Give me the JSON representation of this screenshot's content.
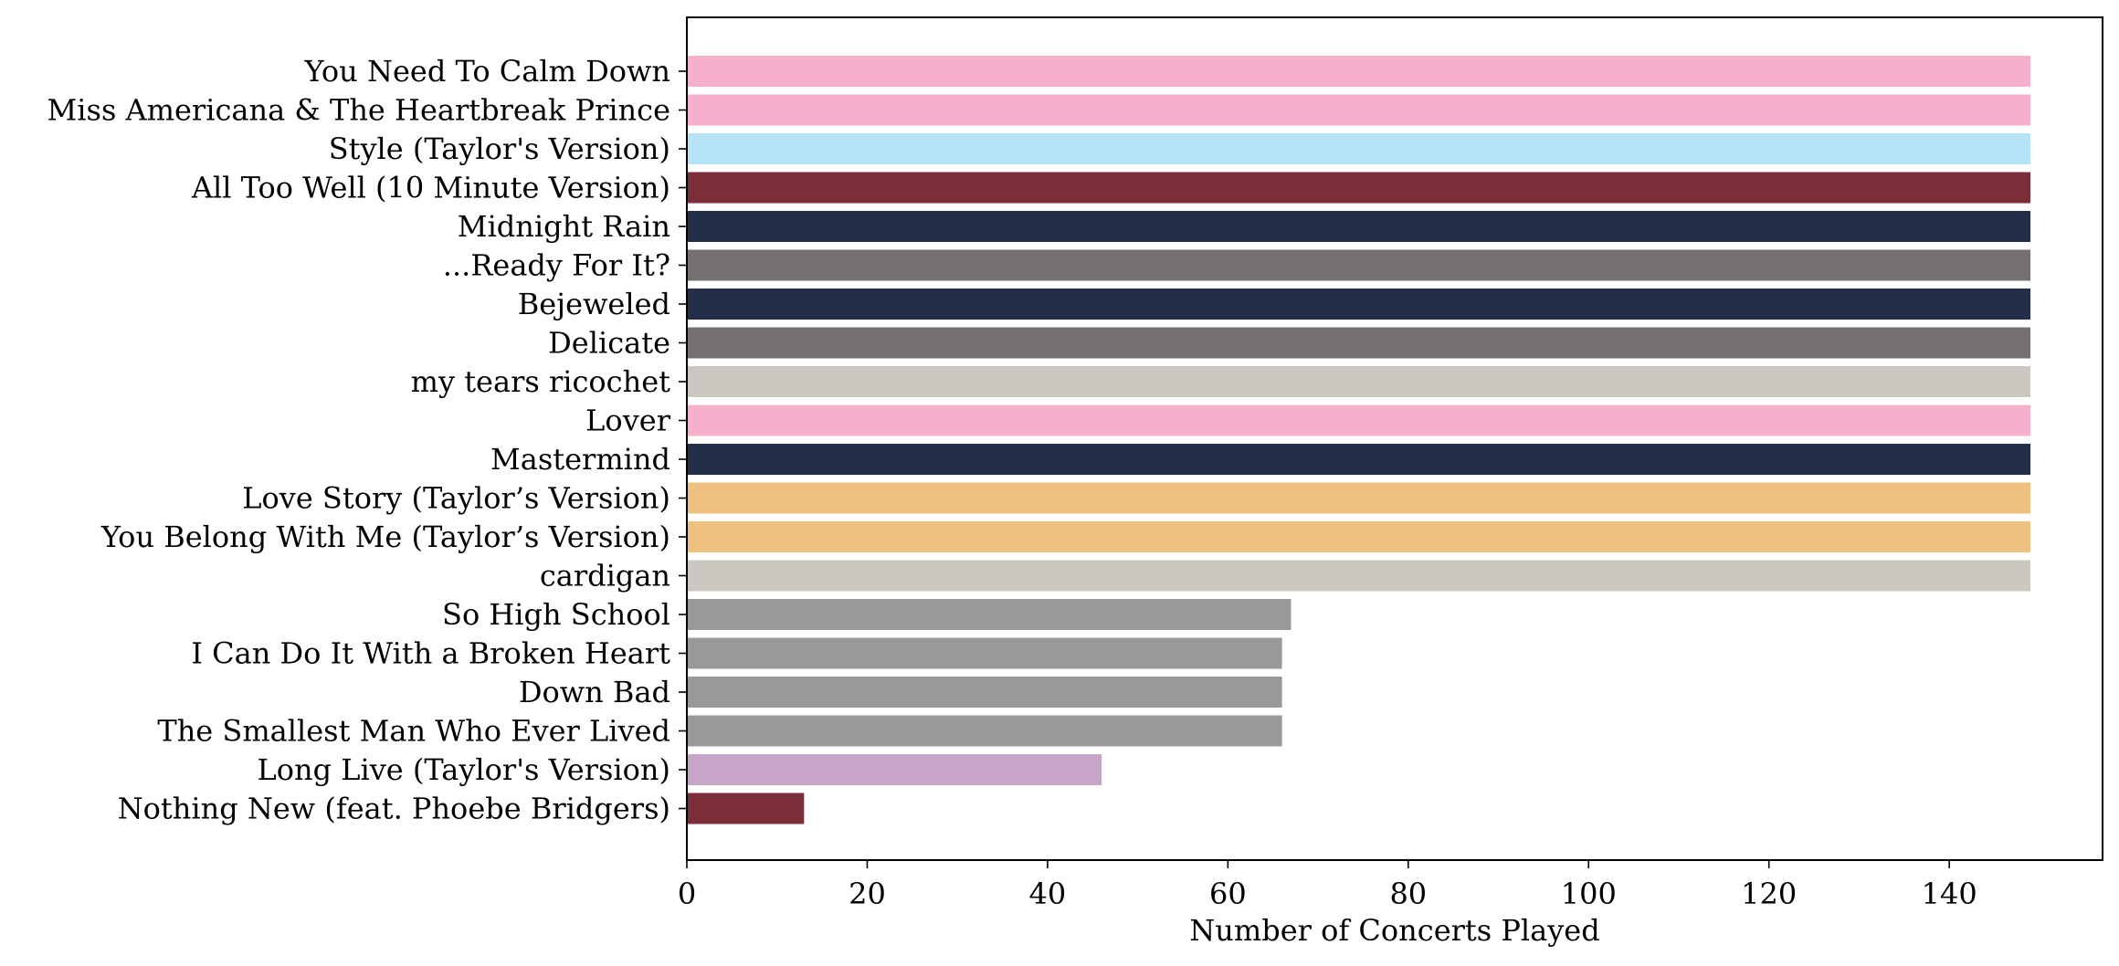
{
  "chart_data": {
    "type": "bar",
    "orientation": "horizontal",
    "title": "",
    "xlabel": "Number of Concerts Played",
    "ylabel": "",
    "xlim": [
      0,
      157
    ],
    "xticks": [
      0,
      20,
      40,
      60,
      80,
      100,
      120,
      140
    ],
    "grid": false,
    "legend": "none",
    "categories": [
      "You Need To Calm Down",
      "Miss Americana & The Heartbreak Prince",
      "Style (Taylor's Version)",
      "All Too Well (10 Minute Version)",
      "Midnight Rain",
      "...Ready For It?",
      "Bejeweled",
      "Delicate",
      "my tears ricochet",
      "Lover",
      "Mastermind",
      "Love Story (Taylor’s Version)",
      "You Belong With Me (Taylor’s Version)",
      "cardigan",
      "So High School",
      "I Can Do It With a Broken Heart",
      "Down Bad",
      "The Smallest Man Who Ever Lived",
      "Long Live (Taylor's Version)",
      "Nothing New (feat. Phoebe Bridgers)"
    ],
    "values": [
      149,
      149,
      149,
      149,
      149,
      149,
      149,
      149,
      149,
      149,
      149,
      149,
      149,
      149,
      67,
      66,
      66,
      66,
      46,
      13
    ],
    "colors": [
      "#f7b0cc",
      "#f7b0cc",
      "#b7e3f6",
      "#7b2d38",
      "#232e48",
      "#757172",
      "#232e48",
      "#757172",
      "#cdc7c2",
      "#f7b0cc",
      "#232e48",
      "#efc180",
      "#efc180",
      "#cdc7c2",
      "#999999",
      "#999999",
      "#999999",
      "#999999",
      "#c8a6c9",
      "#7b2d38"
    ]
  }
}
